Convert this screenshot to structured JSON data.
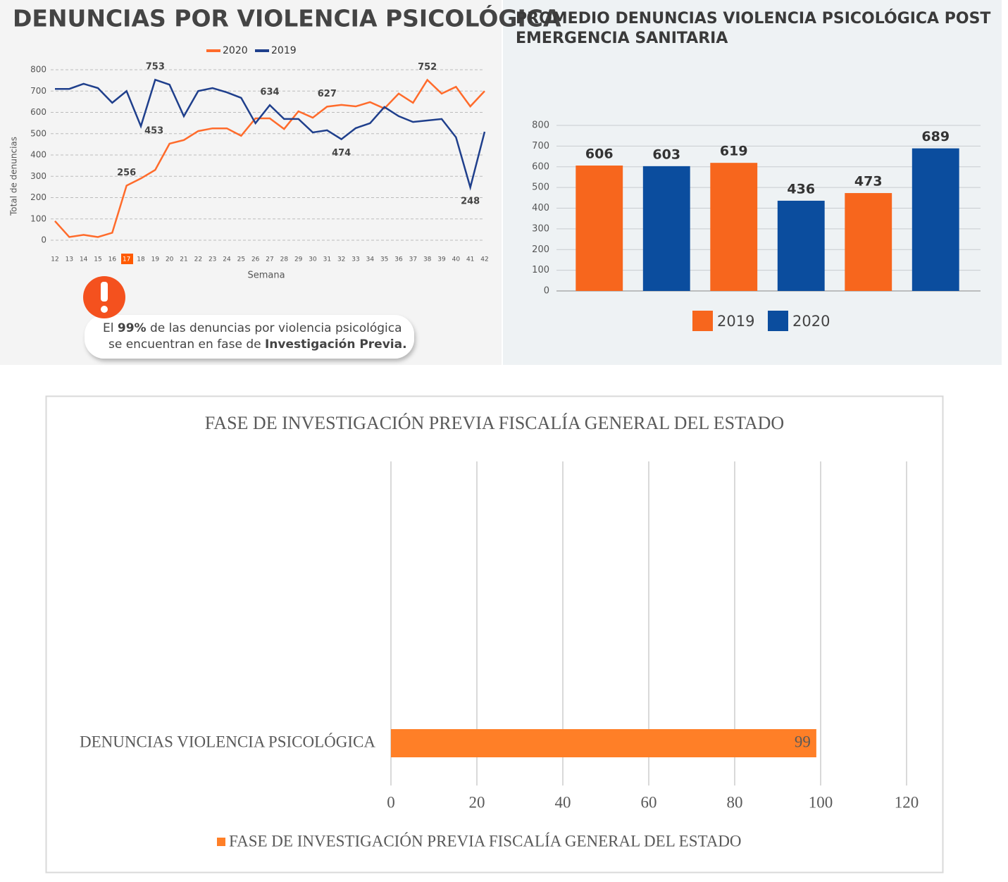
{
  "chart_data": [
    {
      "type": "line",
      "title": "DENUNCIAS POR VIOLENCIA PSICOLÓGICA",
      "x_label": "Semana",
      "y_label": "Total de denuncias",
      "categories": [
        "12",
        "13",
        "14",
        "15",
        "16",
        "17",
        "18",
        "19",
        "20",
        "21",
        "22",
        "23",
        "24",
        "25",
        "26",
        "27",
        "28",
        "29",
        "30",
        "31",
        "32",
        "33",
        "34",
        "35",
        "36",
        "37",
        "38",
        "39",
        "40",
        "41",
        "42"
      ],
      "series": [
        {
          "name": "2020",
          "color": "#ff6b2b",
          "values": [
            90,
            15,
            25,
            15,
            35,
            256,
            290,
            330,
            453,
            470,
            512,
            525,
            525,
            490,
            572,
            572,
            522,
            605,
            575,
            627,
            635,
            628,
            648,
            618,
            688,
            645,
            752,
            688,
            720,
            628,
            700
          ],
          "value_labels": [
            null,
            null,
            null,
            null,
            null,
            "256",
            null,
            null,
            "453",
            null,
            null,
            null,
            null,
            null,
            null,
            null,
            null,
            null,
            null,
            "627",
            null,
            null,
            null,
            null,
            null,
            null,
            "752",
            null,
            null,
            null,
            null
          ]
        },
        {
          "name": "2019",
          "color": "#1f3f8c",
          "values": [
            710,
            710,
            734,
            714,
            645,
            700,
            535,
            753,
            730,
            582,
            700,
            714,
            694,
            668,
            549,
            634,
            569,
            569,
            506,
            516,
            474,
            526,
            549,
            625,
            582,
            555,
            562,
            569,
            483,
            248,
            509
          ],
          "value_labels": [
            null,
            null,
            null,
            null,
            null,
            null,
            null,
            "753",
            null,
            null,
            null,
            null,
            null,
            null,
            null,
            "634",
            null,
            null,
            null,
            null,
            "474",
            null,
            null,
            null,
            null,
            null,
            null,
            null,
            null,
            "248",
            null
          ]
        }
      ],
      "ylim": [
        0,
        800
      ],
      "yticks": [
        0,
        100,
        200,
        300,
        400,
        500,
        600,
        700,
        800
      ],
      "grid": true,
      "annotation": [
        [
          "El ",
          "99%",
          " de las denuncias por violencia psicológica"
        ],
        [
          "se encuentran en fase de ",
          "Investigación Previa."
        ]
      ]
    },
    {
      "type": "bar",
      "title": [
        "PROMEDIO DENUNCIAS VIOLENCIA PSICOLÓGICA POST",
        "EMERGENCIA SANITARIA"
      ],
      "categories": [
        null,
        null,
        null,
        null,
        null,
        null
      ],
      "series": [
        {
          "name": "2019",
          "color": "#f7661d",
          "values": [
            606,
            null,
            619,
            null,
            473,
            null
          ]
        },
        {
          "name": "2020",
          "color": "#0b4d9e",
          "values": [
            null,
            603,
            null,
            436,
            null,
            689
          ]
        }
      ],
      "ylim": [
        0,
        800
      ],
      "yticks": [
        0,
        100,
        200,
        300,
        400,
        500,
        600,
        700,
        800
      ],
      "grid": true
    },
    {
      "type": "bar",
      "horizontal": true,
      "title": "FASE DE INVESTIGACIÓN PREVIA FISCALÍA GENERAL DEL ESTADO",
      "categories": [
        "DENUNCIAS VIOLENCIA PSICOLÓGICA"
      ],
      "series": [
        {
          "name": "FASE DE INVESTIGACIÓN PREVIA FISCALÍA GENERAL DEL ESTADO",
          "color": "#ff7f27",
          "values": [
            99
          ]
        }
      ],
      "xlim": [
        0,
        120
      ],
      "xticks": [
        0,
        20,
        40,
        60,
        80,
        100,
        120
      ],
      "grid": true
    }
  ]
}
